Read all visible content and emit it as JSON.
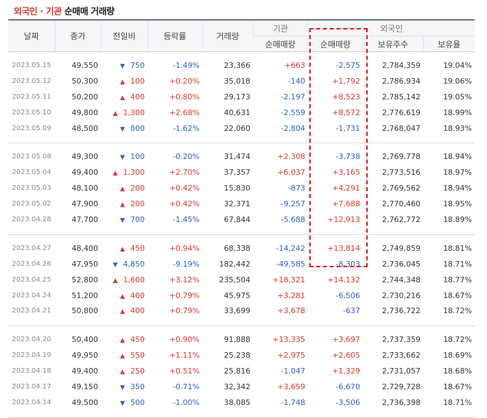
{
  "title": {
    "highlight": "외국인 · 기관",
    "rest": "순매매 거래량"
  },
  "headers": {
    "date": "날짜",
    "close": "종가",
    "change": "전일비",
    "rate": "등락률",
    "volume": "거래량",
    "inst_group": "기관",
    "foreign_group": "외국인",
    "inst_net": "순매매량",
    "foreign_net": "순매매량",
    "holdings": "보유주수",
    "holding_ratio": "보유율"
  },
  "colors": {
    "up": "#e0342a",
    "down": "#2a5fcf",
    "highlight_box": "#e01010"
  },
  "groups": [
    [
      {
        "date": "2023.05.15",
        "close": "49,550",
        "dir": "down",
        "chg": "750",
        "rate": "-1.49%",
        "vol": "23,366",
        "inst": "+663",
        "foreign": "-2,575",
        "hold": "2,784,359",
        "ratio": "19.04%"
      },
      {
        "date": "2023.05.12",
        "close": "50,300",
        "dir": "up",
        "chg": "100",
        "rate": "+0.20%",
        "vol": "35,018",
        "inst": "-140",
        "foreign": "+1,792",
        "hold": "2,786,934",
        "ratio": "19.06%"
      },
      {
        "date": "2023.05.11",
        "close": "50,200",
        "dir": "up",
        "chg": "400",
        "rate": "+0.80%",
        "vol": "29,173",
        "inst": "-2,197",
        "foreign": "+8,523",
        "hold": "2,785,142",
        "ratio": "19.05%"
      },
      {
        "date": "2023.05.10",
        "close": "49,800",
        "dir": "up",
        "chg": "1,300",
        "rate": "+2.68%",
        "vol": "40,631",
        "inst": "-2,559",
        "foreign": "+8,572",
        "hold": "2,776,619",
        "ratio": "18.99%"
      },
      {
        "date": "2023.05.09",
        "close": "48,500",
        "dir": "down",
        "chg": "800",
        "rate": "-1.62%",
        "vol": "22,060",
        "inst": "-2,804",
        "foreign": "-1,731",
        "hold": "2,768,047",
        "ratio": "18.93%"
      }
    ],
    [
      {
        "date": "2023.05.08",
        "close": "49,300",
        "dir": "down",
        "chg": "100",
        "rate": "-0.20%",
        "vol": "31,474",
        "inst": "+2,308",
        "foreign": "-3,738",
        "hold": "2,769,778",
        "ratio": "18.94%"
      },
      {
        "date": "2023.05.04",
        "close": "49,400",
        "dir": "up",
        "chg": "1,300",
        "rate": "+2.70%",
        "vol": "37,357",
        "inst": "+6,037",
        "foreign": "+3,165",
        "hold": "2,773,516",
        "ratio": "18.97%"
      },
      {
        "date": "2023.05.03",
        "close": "48,100",
        "dir": "up",
        "chg": "200",
        "rate": "+0.42%",
        "vol": "15,830",
        "inst": "-873",
        "foreign": "+4,291",
        "hold": "2,769,562",
        "ratio": "18.94%"
      },
      {
        "date": "2023.05.02",
        "close": "47,900",
        "dir": "up",
        "chg": "200",
        "rate": "+0.42%",
        "vol": "32,371",
        "inst": "-9,257",
        "foreign": "+7,688",
        "hold": "2,770,460",
        "ratio": "18.95%"
      },
      {
        "date": "2023.04.28",
        "close": "47,700",
        "dir": "down",
        "chg": "700",
        "rate": "-1.45%",
        "vol": "67,844",
        "inst": "-5,688",
        "foreign": "+12,913",
        "hold": "2,762,772",
        "ratio": "18.89%"
      }
    ],
    [
      {
        "date": "2023.04.27",
        "close": "48,400",
        "dir": "up",
        "chg": "450",
        "rate": "+0.94%",
        "vol": "68,338",
        "inst": "-14,242",
        "foreign": "+13,814",
        "hold": "2,749,859",
        "ratio": "18.81%"
      },
      {
        "date": "2023.04.26",
        "close": "47,950",
        "dir": "down",
        "chg": "4,850",
        "rate": "-9.19%",
        "vol": "182,442",
        "inst": "-49,585",
        "foreign": "-8,303",
        "hold": "2,736,045",
        "ratio": "18.71%"
      },
      {
        "date": "2023.04.25",
        "close": "52,800",
        "dir": "up",
        "chg": "1,600",
        "rate": "+3.12%",
        "vol": "235,504",
        "inst": "+18,321",
        "foreign": "+14,132",
        "hold": "2,744,348",
        "ratio": "18.77%"
      },
      {
        "date": "2023.04.24",
        "close": "51,200",
        "dir": "up",
        "chg": "400",
        "rate": "+0.79%",
        "vol": "45,975",
        "inst": "+3,281",
        "foreign": "-6,506",
        "hold": "2,730,216",
        "ratio": "18.67%"
      },
      {
        "date": "2023.04.21",
        "close": "50,800",
        "dir": "up",
        "chg": "400",
        "rate": "+0.79%",
        "vol": "33,699",
        "inst": "+3,678",
        "foreign": "-637",
        "hold": "2,736,722",
        "ratio": "18.72%"
      }
    ],
    [
      {
        "date": "2023.04.20",
        "close": "50,400",
        "dir": "up",
        "chg": "450",
        "rate": "+0.90%",
        "vol": "91,888",
        "inst": "+13,335",
        "foreign": "+3,697",
        "hold": "2,737,359",
        "ratio": "18.72%"
      },
      {
        "date": "2023.04.19",
        "close": "49,950",
        "dir": "up",
        "chg": "550",
        "rate": "+1.11%",
        "vol": "25,238",
        "inst": "+2,975",
        "foreign": "+2,605",
        "hold": "2,733,662",
        "ratio": "18.69%"
      },
      {
        "date": "2023.04.18",
        "close": "49,400",
        "dir": "up",
        "chg": "250",
        "rate": "+0.51%",
        "vol": "25,816",
        "inst": "-1,047",
        "foreign": "+1,329",
        "hold": "2,731,057",
        "ratio": "18.68%"
      },
      {
        "date": "2023.04.17",
        "close": "49,150",
        "dir": "down",
        "chg": "350",
        "rate": "-0.71%",
        "vol": "32,342",
        "inst": "+3,659",
        "foreign": "-6,670",
        "hold": "2,729,728",
        "ratio": "18.67%"
      },
      {
        "date": "2023.04.14",
        "close": "49,500",
        "dir": "down",
        "chg": "500",
        "rate": "-1.00%",
        "vol": "38,085",
        "inst": "-1,748",
        "foreign": "-3,506",
        "hold": "2,736,398",
        "ratio": "18.71%"
      }
    ]
  ]
}
